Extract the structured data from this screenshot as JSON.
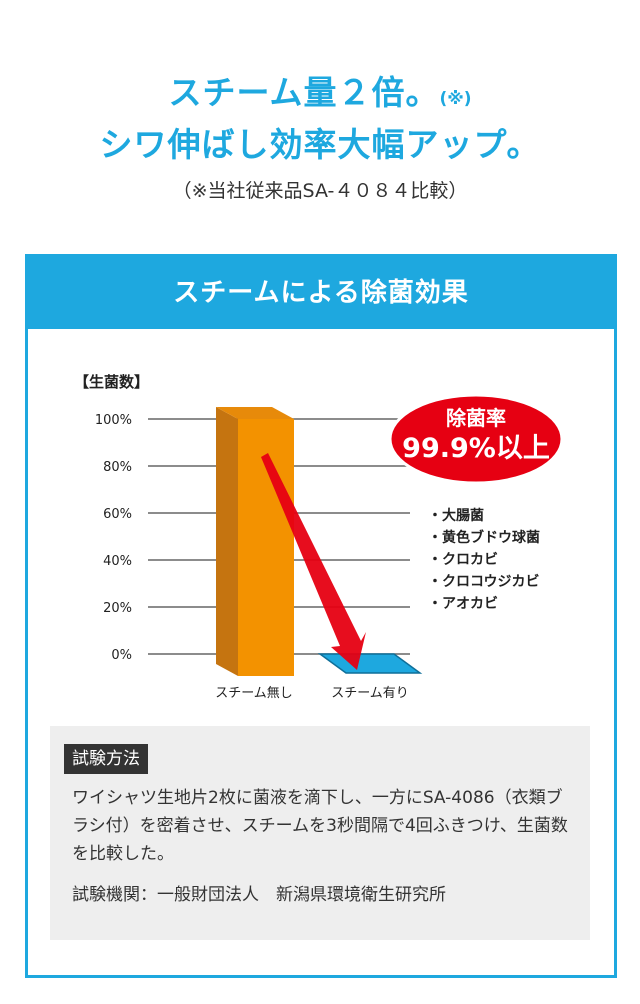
{
  "headline": {
    "line1": "スチーム量２倍。",
    "line1_note": "(※)",
    "line2": "シワ伸ばし効率大幅アップ。"
  },
  "subnote": "（※当社従来品SA-４０８４比較）",
  "panel": {
    "title": "スチームによる除菌効果"
  },
  "badge": {
    "line1": "除菌率",
    "line2": "99.9%以上"
  },
  "bacteria": [
    "・大腸菌",
    "・黄色ブドウ球菌",
    "・クロカビ",
    "・クロコウジカビ",
    "・アオカビ"
  ],
  "method": {
    "tag": "試験方法",
    "text": "ワイシャツ生地片2枚に菌液を滴下し、一方にSA-4086（衣類ブラシ付）を密着させ、スチームを3秒間隔で4回ふきつけ、生菌数を比較した。",
    "org": "試験機関：一般財団法人　新潟県環境衛生研究所"
  },
  "colors": {
    "accent": "#1ea8df",
    "bar": "#f39200",
    "bar_side": "#c57410",
    "badge": "#e60012",
    "arrow": "#e60012"
  },
  "chart_data": {
    "type": "bar",
    "title": "【生菌数】",
    "categories": [
      "スチーム無し",
      "スチーム有り"
    ],
    "values": [
      100,
      0.1
    ],
    "yticks": [
      "0%",
      "20%",
      "40%",
      "60%",
      "80%",
      "100%"
    ],
    "ylim": [
      0,
      100
    ],
    "grid": true
  }
}
